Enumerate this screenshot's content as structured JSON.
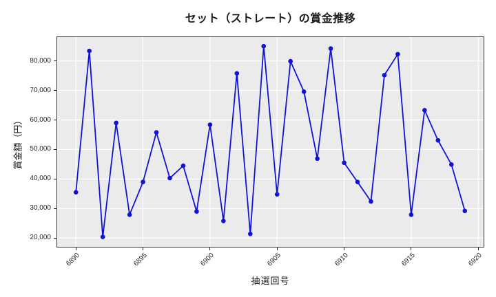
{
  "title": "セット（ストレート）の賞金推移",
  "chart_data": {
    "type": "line",
    "title": "セット（ストレート）の賞金推移",
    "xlabel": "抽選回号",
    "ylabel": "賞金額（円）",
    "x": [
      6890,
      6891,
      6892,
      6893,
      6894,
      6895,
      6896,
      6897,
      6898,
      6899,
      6900,
      6901,
      6902,
      6903,
      6904,
      6905,
      6906,
      6907,
      6908,
      6909,
      6910,
      6911,
      6912,
      6913,
      6914,
      6915,
      6916,
      6917,
      6918,
      6919
    ],
    "values": [
      35500,
      83400,
      20400,
      59000,
      27900,
      39000,
      55800,
      40300,
      44500,
      29000,
      58400,
      25800,
      75800,
      21400,
      85000,
      34800,
      79900,
      69600,
      46900,
      84200,
      45500,
      39000,
      32400,
      75200,
      82300,
      27900,
      63300,
      53100,
      44900,
      29200
    ],
    "x_ticks": [
      6890,
      6895,
      6900,
      6905,
      6910,
      6915,
      6920
    ],
    "x_tick_labels": [
      "6890",
      "6895",
      "6900",
      "6905",
      "6910",
      "6915",
      "6920"
    ],
    "y_ticks": [
      20000,
      30000,
      40000,
      50000,
      60000,
      70000,
      80000
    ],
    "y_tick_labels": [
      "20,000",
      "30,000",
      "40,000",
      "50,000",
      "60,000",
      "70,000",
      "80,000"
    ],
    "xlim": [
      6888.55,
      6920.45
    ],
    "ylim": [
      16800,
      88300
    ],
    "grid": true,
    "legend": null,
    "line_color": "#1212d6",
    "marker_color": "#1212d6",
    "plot_bg": "#ebebeb",
    "grid_color": "#ffffff",
    "spine_color": "#333333"
  }
}
